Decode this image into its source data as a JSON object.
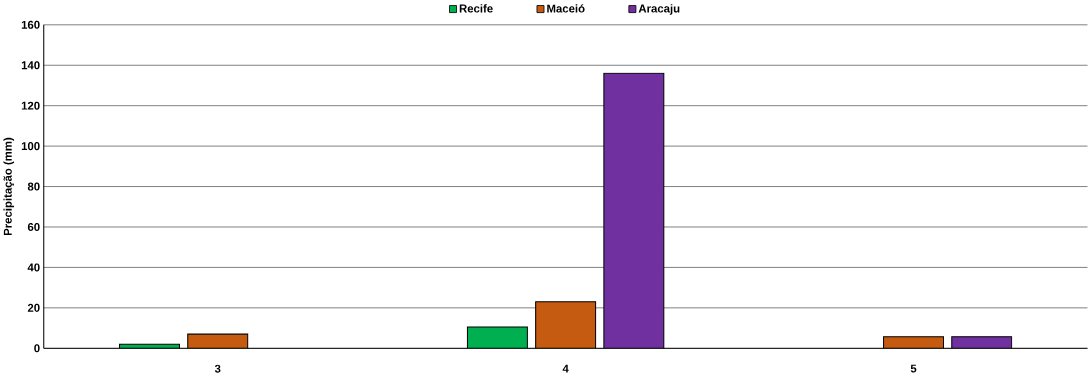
{
  "chart_data": {
    "type": "bar",
    "ylabel": "Precipitação (mm)",
    "categories": [
      "3",
      "4",
      "5"
    ],
    "series": [
      {
        "name": "Recife",
        "color": "#00b050",
        "values": [
          2,
          10.5,
          null
        ]
      },
      {
        "name": "Maceió",
        "color": "#c55a11",
        "values": [
          7,
          23,
          5.7
        ]
      },
      {
        "name": "Aracaju",
        "color": "#7030a0",
        "values": [
          null,
          136,
          5.7
        ]
      }
    ],
    "ylim": [
      0,
      160
    ],
    "yticks": [
      0,
      20,
      40,
      60,
      80,
      100,
      120,
      140,
      160
    ],
    "grid": "y",
    "legend": "top"
  }
}
